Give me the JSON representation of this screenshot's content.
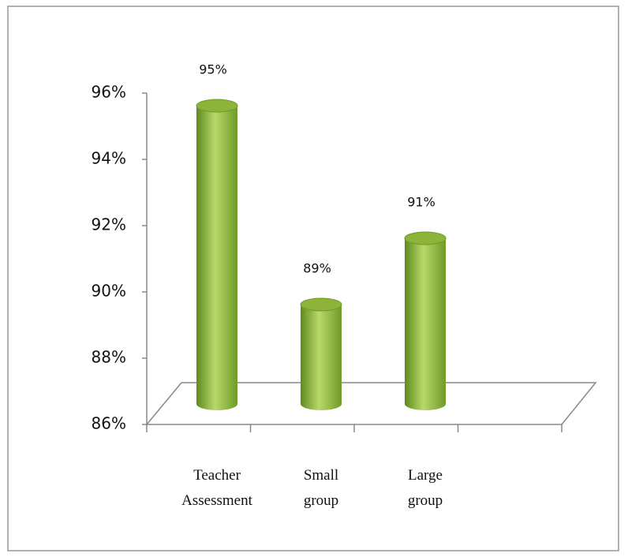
{
  "chart_data": {
    "type": "bar",
    "categories": [
      "Teacher Assessment",
      "Small group",
      "Large group"
    ],
    "values": [
      95,
      89,
      91
    ],
    "value_labels": [
      "95%",
      "89%",
      "91%"
    ],
    "color": "#8db33a",
    "ylim": [
      86,
      96
    ],
    "yticks": [
      {
        "value": 86,
        "label": "86%"
      },
      {
        "value": 88,
        "label": "88%"
      },
      {
        "value": 90,
        "label": "90%"
      },
      {
        "value": 92,
        "label": "92%"
      },
      {
        "value": 94,
        "label": "94%"
      },
      {
        "value": 96,
        "label": "96%"
      }
    ]
  }
}
